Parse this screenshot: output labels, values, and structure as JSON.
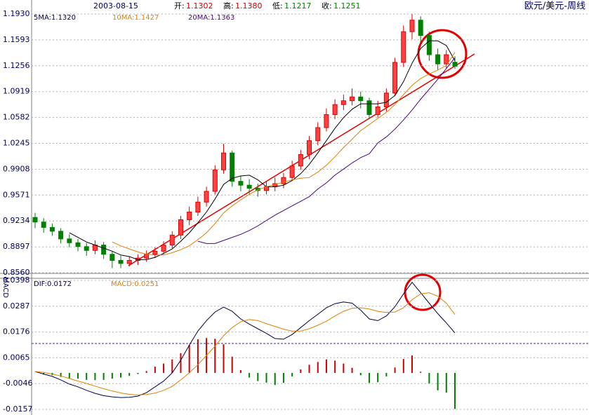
{
  "header": {
    "date": "2003-08-15",
    "items": [
      {
        "label": "开:",
        "value": "1.1302",
        "color": "#d00000"
      },
      {
        "label": "高:",
        "value": "1.1380",
        "color": "#d00000"
      },
      {
        "label": "低:",
        "value": "1.1217",
        "color": "#008000"
      },
      {
        "label": "收:",
        "value": "1.1251",
        "color": "#008000"
      }
    ]
  },
  "chart_data": [
    {
      "type": "candlestick",
      "title": "欧元/美元-周线",
      "open": [
        0.928,
        0.922,
        0.915,
        0.91,
        0.9,
        0.895,
        0.89,
        0.885,
        0.892,
        0.88,
        0.872,
        0.868,
        0.872,
        0.875,
        0.88,
        0.884,
        0.892,
        0.905,
        0.925,
        0.935,
        0.948,
        0.962,
        0.99,
        1.012,
        0.975,
        0.97,
        0.966,
        0.963,
        0.968,
        0.972,
        0.98,
        0.995,
        1.01,
        1.028,
        1.045,
        1.062,
        1.075,
        1.08,
        1.085,
        1.08,
        1.062,
        1.072,
        1.09,
        1.13,
        1.17,
        1.185,
        1.165,
        1.14,
        1.128,
        1.1302
      ],
      "high": [
        0.934,
        0.927,
        0.92,
        0.914,
        0.906,
        0.9,
        0.895,
        0.898,
        0.896,
        0.884,
        0.878,
        0.877,
        0.88,
        0.885,
        0.889,
        0.897,
        0.91,
        0.93,
        0.942,
        0.955,
        0.968,
        0.996,
        1.024,
        1.015,
        0.982,
        0.978,
        0.972,
        0.975,
        0.98,
        0.986,
        1.002,
        1.016,
        1.034,
        1.052,
        1.07,
        1.082,
        1.088,
        1.096,
        1.092,
        1.084,
        1.08,
        1.096,
        1.136,
        1.178,
        1.193,
        1.19,
        1.17,
        1.148,
        1.146,
        1.138
      ],
      "low": [
        0.914,
        0.908,
        0.904,
        0.894,
        0.889,
        0.884,
        0.878,
        0.88,
        0.874,
        0.862,
        0.862,
        0.864,
        0.866,
        0.87,
        0.875,
        0.88,
        0.888,
        0.9,
        0.918,
        0.93,
        0.942,
        0.958,
        0.985,
        0.968,
        0.962,
        0.958,
        0.955,
        0.958,
        0.962,
        0.966,
        0.976,
        0.99,
        1.004,
        1.022,
        1.04,
        1.056,
        1.068,
        1.074,
        1.07,
        1.056,
        1.058,
        1.066,
        1.086,
        1.124,
        1.16,
        1.156,
        1.132,
        1.12,
        1.122,
        1.1217
      ],
      "close": [
        0.922,
        0.915,
        0.91,
        0.9,
        0.895,
        0.89,
        0.885,
        0.892,
        0.88,
        0.872,
        0.868,
        0.872,
        0.875,
        0.88,
        0.884,
        0.892,
        0.905,
        0.925,
        0.935,
        0.948,
        0.962,
        0.99,
        1.012,
        0.975,
        0.97,
        0.966,
        0.963,
        0.968,
        0.972,
        0.98,
        0.995,
        1.01,
        1.028,
        1.045,
        1.062,
        1.075,
        1.08,
        1.085,
        1.08,
        1.062,
        1.072,
        1.09,
        1.13,
        1.17,
        1.185,
        1.165,
        1.14,
        1.128,
        1.14,
        1.1251
      ],
      "up_color": "#e00000",
      "down_color": "#008000",
      "series": [
        {
          "name": "5MA:1.1320",
          "color": "#000000",
          "values": [
            null,
            null,
            null,
            null,
            0.908,
            0.902,
            0.896,
            0.892,
            0.888,
            0.884,
            0.879,
            0.877,
            0.873,
            0.873,
            0.876,
            0.881,
            0.887,
            0.897,
            0.908,
            0.921,
            0.935,
            0.952,
            0.971,
            0.979,
            0.982,
            0.983,
            0.977,
            0.968,
            0.968,
            0.97,
            0.976,
            0.985,
            0.997,
            1.012,
            1.028,
            1.044,
            1.058,
            1.069,
            1.076,
            1.076,
            1.076,
            1.078,
            1.087,
            1.105,
            1.129,
            1.148,
            1.158,
            1.158,
            1.152,
            1.132
          ]
        },
        {
          "name": "10MA:1.1427",
          "color": "#e08000",
          "values": [
            null,
            null,
            null,
            null,
            null,
            null,
            null,
            null,
            null,
            0.896,
            0.891,
            0.887,
            0.883,
            0.88,
            0.879,
            0.879,
            0.882,
            0.886,
            0.891,
            0.899,
            0.908,
            0.92,
            0.934,
            0.943,
            0.951,
            0.958,
            0.964,
            0.968,
            0.971,
            0.974,
            0.977,
            0.979,
            0.98,
            0.987,
            0.996,
            1.007,
            1.019,
            1.03,
            1.041,
            1.049,
            1.057,
            1.065,
            1.075,
            1.088,
            1.1,
            1.109,
            1.115,
            1.12,
            1.126,
            1.143
          ]
        },
        {
          "name": "20MA:1.1363",
          "color": "#4b0082",
          "values": [
            null,
            null,
            null,
            null,
            null,
            null,
            null,
            null,
            null,
            null,
            null,
            null,
            null,
            null,
            null,
            null,
            null,
            null,
            null,
            0.897,
            0.894,
            0.894,
            0.898,
            0.902,
            0.906,
            0.911,
            0.917,
            0.924,
            0.931,
            0.937,
            0.943,
            0.949,
            0.955,
            0.965,
            0.973,
            0.983,
            0.991,
            0.999,
            1.006,
            1.011,
            1.025,
            1.033,
            1.043,
            1.055,
            1.068,
            1.082,
            1.095,
            1.108,
            1.122,
            1.136
          ]
        }
      ],
      "ylim": [
        0.856,
        1.193
      ],
      "yticks": [
        {
          "value": 1.193,
          "label": "1.1930"
        },
        1.1593,
        1.1256,
        1.0919,
        1.0582,
        1.0245,
        0.9908,
        0.9571,
        0.9234,
        0.8897,
        {
          "value": 0.856,
          "label": "0.8560"
        }
      ],
      "grid": true
    },
    {
      "type": "macd",
      "label": "MACD",
      "series": [
        {
          "name": "DIF:0.0172",
          "color": "#000040",
          "values": [
            0.0006,
            -0.0005,
            -0.0015,
            -0.003,
            -0.0048,
            -0.006,
            -0.0075,
            -0.0088,
            -0.0098,
            -0.0103,
            -0.0106,
            -0.0105,
            -0.01,
            -0.0085,
            -0.006,
            -0.0035,
            0.0,
            0.0055,
            0.012,
            0.018,
            0.0225,
            0.0262,
            0.0283,
            0.0265,
            0.0232,
            0.021,
            0.019,
            0.017,
            0.0148,
            0.0145,
            0.0165,
            0.0195,
            0.0225,
            0.0252,
            0.028,
            0.0298,
            0.0305,
            0.03,
            0.027,
            0.0232,
            0.0225,
            0.0245,
            0.0285,
            0.034,
            0.039,
            0.0345,
            0.03,
            0.0255,
            0.0215,
            0.0172
          ]
        },
        {
          "name": "MACD:0.0251",
          "color": "#e08000",
          "values": [
            0.0006,
            0.0002,
            -0.0005,
            -0.0013,
            -0.0024,
            -0.0035,
            -0.0045,
            -0.0057,
            -0.0068,
            -0.0078,
            -0.0086,
            -0.0092,
            -0.0095,
            -0.0093,
            -0.0087,
            -0.0075,
            -0.0058,
            -0.003,
            0.0,
            0.0035,
            0.0075,
            0.0115,
            0.016,
            0.0195,
            0.022,
            0.023,
            0.0225,
            0.0212,
            0.02,
            0.0188,
            0.018,
            0.018,
            0.019,
            0.0205,
            0.0222,
            0.0245,
            0.0265,
            0.0278,
            0.028,
            0.0275,
            0.0265,
            0.026,
            0.0262,
            0.028,
            0.0315,
            0.034,
            0.0345,
            0.033,
            0.03,
            0.0251
          ]
        }
      ],
      "histogram": [
        0,
        -0.0007,
        -0.001,
        -0.0017,
        -0.0024,
        -0.0025,
        -0.003,
        -0.0031,
        -0.003,
        -0.0025,
        -0.002,
        -0.0013,
        -0.0005,
        0.0008,
        0.0027,
        0.004,
        0.0058,
        0.0085,
        0.012,
        0.0145,
        0.015,
        0.0147,
        0.0123,
        0.007,
        0.0012,
        -0.002,
        -0.0035,
        -0.0042,
        -0.0052,
        -0.0043,
        -0.0015,
        0.0015,
        0.0035,
        0.0047,
        0.0058,
        0.0053,
        0.004,
        0.0022,
        -0.001,
        -0.0043,
        -0.004,
        -0.0015,
        0.0023,
        0.006,
        0.0075,
        0.0005,
        -0.0045,
        -0.0075,
        -0.0085,
        -0.0155
      ],
      "pos_color": "#d00000",
      "neg_color": "#008000",
      "ylim": [
        -0.0157,
        0.0398
      ],
      "yticks": [
        0.0398,
        0.0287,
        0.0176,
        0.0065,
        -0.0046,
        -0.0157
      ],
      "grid": true
    }
  ]
}
